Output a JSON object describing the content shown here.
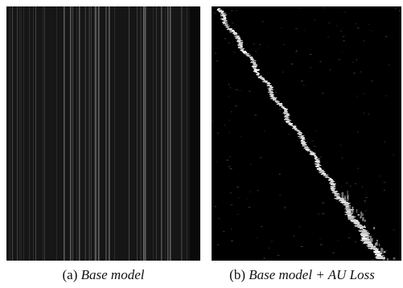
{
  "figure": {
    "panels": [
      {
        "label": "(a)",
        "title": "Base model",
        "colors": {
          "background": "#161616",
          "stripe_light": "#555555",
          "stripe_dim": "#2a2a2a"
        }
      },
      {
        "label": "(b)",
        "title": "Base model + AU Loss",
        "colors": {
          "background": "#000000",
          "diagonal": "#f2f2f2",
          "noise": "#2c2c2c"
        }
      }
    ]
  }
}
